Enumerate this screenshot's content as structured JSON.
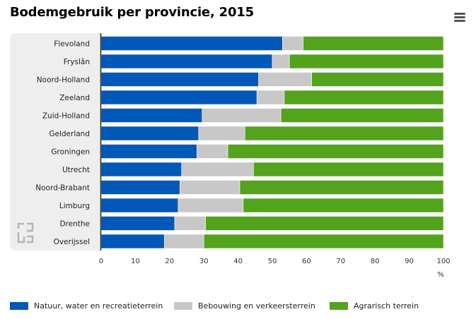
{
  "title": "Bodemgebruik per provincie, 2015",
  "menu_icon": "hamburger-menu-icon",
  "logo_icon": "cbs-logo-icon",
  "colors": {
    "natuur": "#0058b8",
    "bebouwing": "#c8c8c8",
    "agrarisch": "#53a31d",
    "panel": "#eeeeee",
    "axis": "#333333"
  },
  "legend": [
    {
      "label": "Natuur, water en recreatieterrein",
      "color": "#0058b8"
    },
    {
      "label": "Bebouwing en verkeersterrein",
      "color": "#c8c8c8"
    },
    {
      "label": "Agrarisch terrein",
      "color": "#53a31d"
    }
  ],
  "chart_data": {
    "type": "bar",
    "orientation": "horizontal",
    "stacked": true,
    "title": "Bodemgebruik per provincie, 2015",
    "categories": [
      "Flevoland",
      "Fryslân",
      "Noord-Holland",
      "Zeeland",
      "Zuid-Holland",
      "Gelderland",
      "Groningen",
      "Utrecht",
      "Noord-Brabant",
      "Limburg",
      "Drenthe",
      "Overijssel"
    ],
    "series": [
      {
        "name": "Natuur, water en recreatieterrein",
        "color": "#0058b8",
        "values": [
          53,
          50,
          46,
          45.5,
          29.5,
          28.5,
          28,
          23.5,
          23,
          22.5,
          21.5,
          18.5
        ]
      },
      {
        "name": "Bebouwing en verkeersterrein",
        "color": "#c8c8c8",
        "values": [
          6,
          5,
          15.5,
          8,
          23,
          13.5,
          9,
          21,
          17.5,
          19,
          9,
          11.5
        ]
      },
      {
        "name": "Agrarisch terrein",
        "color": "#53a31d",
        "values": [
          41,
          45,
          38.5,
          46.5,
          47.5,
          58,
          63,
          55.5,
          59.5,
          58.5,
          69.5,
          70
        ]
      }
    ],
    "xlim": [
      0,
      100
    ],
    "xticks": [
      0,
      10,
      20,
      30,
      40,
      50,
      60,
      70,
      80,
      90,
      100
    ],
    "xunit": "%",
    "grid": false,
    "legend_position": "bottom"
  }
}
